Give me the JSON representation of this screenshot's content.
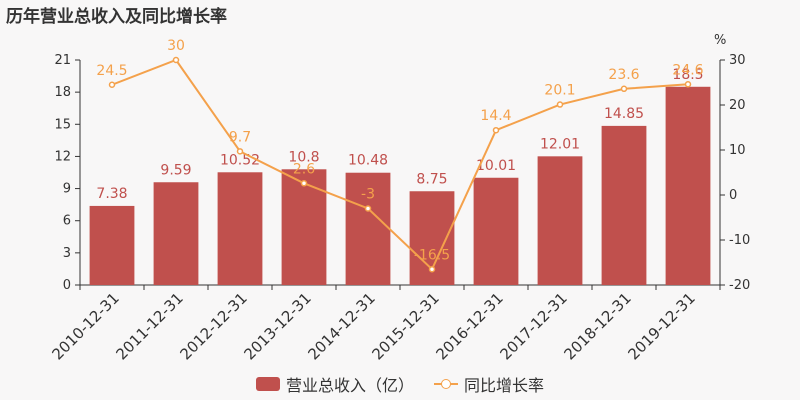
{
  "title": "历年营业总收入及同比增长率",
  "chart_data": {
    "type": "bar+line",
    "categories": [
      "2010-12-31",
      "2011-12-31",
      "2012-12-31",
      "2013-12-31",
      "2014-12-31",
      "2015-12-31",
      "2016-12-31",
      "2017-12-31",
      "2018-12-31",
      "2019-12-31"
    ],
    "series": [
      {
        "name": "营业总收入（亿）",
        "type": "bar",
        "axis": "left",
        "values": [
          7.38,
          9.59,
          10.52,
          10.8,
          10.48,
          8.75,
          10.01,
          12.01,
          14.85,
          18.5
        ],
        "color": "#c0504d"
      },
      {
        "name": "同比增长率",
        "type": "line",
        "axis": "right",
        "values": [
          24.5,
          30,
          9.7,
          2.6,
          -3,
          -16.5,
          14.4,
          20.1,
          23.6,
          24.6
        ],
        "color": "#f4a14b"
      }
    ],
    "y_left": {
      "min": 0,
      "max": 21,
      "ticks": [
        0,
        3,
        6,
        9,
        12,
        15,
        18,
        21
      ]
    },
    "y_right": {
      "min": -20,
      "max": 30,
      "ticks": [
        -20,
        -10,
        0,
        10,
        20,
        30
      ],
      "unit": "%"
    },
    "legend_position": "bottom-center",
    "grid": false
  }
}
